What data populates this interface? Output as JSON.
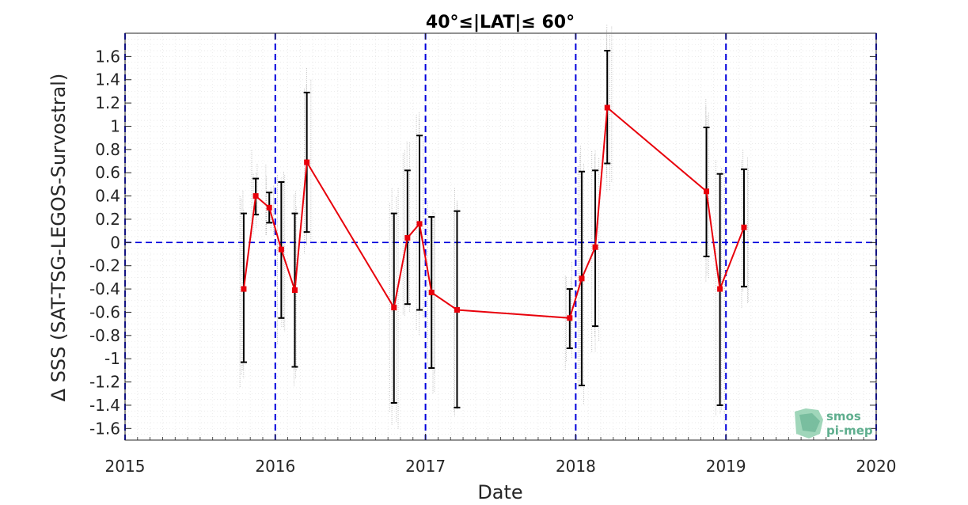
{
  "chart_data": {
    "type": "line",
    "title": "40°≤|LAT|≤ 60°",
    "xlabel": "Date",
    "ylabel": "Δ SSS (SAT-TSG-LEGOS-Survostral)",
    "xlim": [
      2015,
      2020
    ],
    "ylim": [
      -1.7,
      1.8
    ],
    "x_ticks": [
      2015,
      2016,
      2017,
      2018,
      2019,
      2020
    ],
    "x_tick_labels": [
      "2015",
      "2016",
      "2017",
      "2018",
      "2019",
      "2020"
    ],
    "y_ticks": [
      -1.6,
      -1.4,
      -1.2,
      -1,
      -0.8,
      -0.6,
      -0.4,
      -0.2,
      0,
      0.2,
      0.4,
      0.6,
      0.8,
      1,
      1.2,
      1.4,
      1.6
    ],
    "y_tick_labels": [
      "-1.6",
      "-1.4",
      "-1.2",
      "-1",
      "-0.8",
      "-0.6",
      "-0.4",
      "-0.2",
      "0",
      "0.2",
      "0.4",
      "0.6",
      "0.8",
      "1",
      "1.2",
      "1.4",
      "1.6"
    ],
    "grid": "on",
    "year_lines": [
      2016,
      2017,
      2018,
      2019,
      2020
    ],
    "zero_line": 0,
    "series": [
      {
        "color": "#e8000b",
        "x": [
          2015.79,
          2015.87,
          2015.96,
          2016.04,
          2016.13,
          2016.21,
          2016.79,
          2016.88,
          2016.96,
          2017.04,
          2017.21,
          2017.96,
          2018.04,
          2018.13,
          2018.21,
          2018.87,
          2018.96,
          2019.12
        ],
        "y": [
          -0.4,
          0.4,
          0.3,
          -0.06,
          -0.41,
          0.69,
          -0.56,
          0.04,
          0.16,
          -0.43,
          -0.58,
          -0.65,
          -0.31,
          -0.04,
          1.16,
          0.44,
          -0.4,
          0.13
        ],
        "err_low": [
          -1.03,
          0.24,
          0.17,
          -0.65,
          -1.07,
          0.09,
          -1.38,
          -0.53,
          -0.58,
          -1.08,
          -1.42,
          -0.91,
          -1.23,
          -0.72,
          0.68,
          -0.12,
          -1.4,
          -0.38
        ],
        "err_high": [
          0.25,
          0.55,
          0.43,
          0.52,
          0.25,
          1.29,
          0.25,
          0.62,
          0.92,
          0.22,
          0.27,
          -0.4,
          0.61,
          0.62,
          1.65,
          0.99,
          0.59,
          0.63
        ]
      }
    ]
  },
  "logo": {
    "line1": "smos",
    "line2": "pi-mep"
  },
  "colors": {
    "series": "#e8000b",
    "errorbar": "#000000",
    "reference": "#0000dd",
    "scatter": "#555555",
    "logo": "#5fae8e"
  }
}
